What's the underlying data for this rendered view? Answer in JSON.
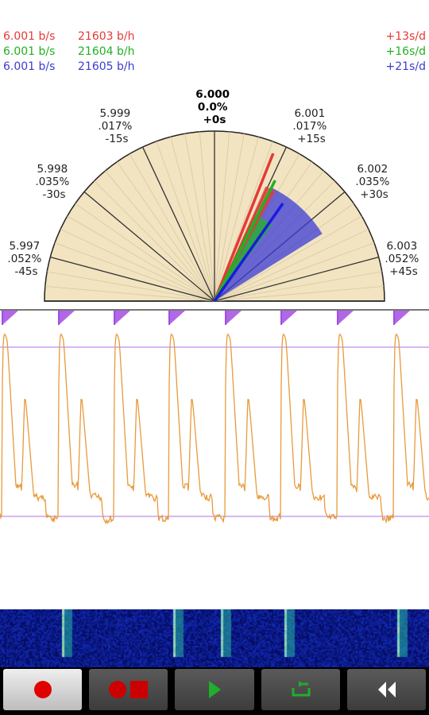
{
  "readouts": [
    {
      "rate": "6.001 b/s",
      "hourly": "21603 b/h",
      "drift": "+13s/d",
      "color": "#e53935"
    },
    {
      "rate": "6.001 b/s",
      "hourly": "21604 b/h",
      "drift": "+16s/d",
      "color": "#22b022"
    },
    {
      "rate": "6.001 b/s",
      "hourly": "21605 b/h",
      "drift": "+21s/d",
      "color": "#3b3bd0"
    }
  ],
  "dial": {
    "labels": [
      {
        "lines": [
          "5.997",
          ".052%",
          "-45s"
        ]
      },
      {
        "lines": [
          "5.998",
          ".035%",
          "-30s"
        ]
      },
      {
        "lines": [
          "5.999",
          ".017%",
          "-15s"
        ]
      },
      {
        "lines": [
          "6.000",
          "0.0%",
          "+0s"
        ]
      },
      {
        "lines": [
          "6.001",
          ".017%",
          "+15s"
        ]
      },
      {
        "lines": [
          "6.002",
          ".035%",
          "+30s"
        ]
      },
      {
        "lines": [
          "6.003",
          ".052%",
          "+45s"
        ]
      }
    ],
    "face_color": "#f2e3c1",
    "needles": [
      {
        "color": "#e53935",
        "value_s_per_day": 13
      },
      {
        "color": "#22b022",
        "value_s_per_day": 16
      },
      {
        "color": "#1a1ae0",
        "value_s_per_day": 21
      }
    ]
  },
  "waveform": {
    "line_color": "#e89a3c",
    "marker_color": "#b266e8",
    "beats": 8
  },
  "spectrogram": {
    "bg_color": "#0d1f6e"
  },
  "toolbar": {
    "buttons": [
      {
        "name": "record-button",
        "icon": "record-icon"
      },
      {
        "name": "record-stop-button",
        "icon": "record-stop-icon"
      },
      {
        "name": "play-button",
        "icon": "play-icon"
      },
      {
        "name": "loop-button",
        "icon": "loop-icon"
      },
      {
        "name": "rewind-button",
        "icon": "rewind-icon"
      }
    ]
  }
}
